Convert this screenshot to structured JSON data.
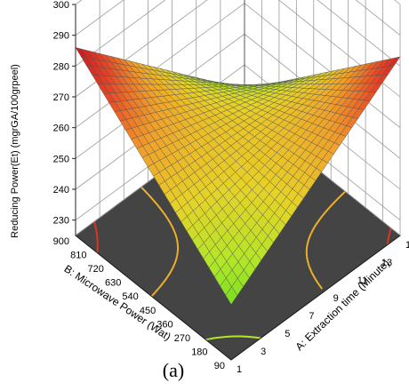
{
  "chart_data": {
    "type": "surface3d",
    "panel_label": "(a)",
    "zlabel": "Reducing Power(Et) (mgrGA/100grpeel)",
    "xlabel": "A: Extraction time (Minute)",
    "ylabel": "B: Microwave Power (Wat)",
    "x_ticks": [
      "1",
      "3",
      "5",
      "7",
      "9",
      "11",
      "13",
      "15"
    ],
    "y_ticks": [
      "90",
      "180",
      "270",
      "360",
      "450",
      "540",
      "630",
      "720",
      "810",
      "900"
    ],
    "z_ticks": [
      "230",
      "240",
      "250",
      "260",
      "270",
      "280",
      "290",
      "300"
    ],
    "xlim": [
      1,
      15
    ],
    "ylim": [
      90,
      900
    ],
    "zlim": [
      225,
      300
    ],
    "surface_corners": [
      {
        "x": 1,
        "y": 90,
        "z": 243
      },
      {
        "x": 15,
        "y": 90,
        "z": 283
      },
      {
        "x": 1,
        "y": 900,
        "z": 286
      },
      {
        "x": 15,
        "y": 900,
        "z": 232
      }
    ],
    "colormap": [
      "#22cc22",
      "#66dd22",
      "#b4e628",
      "#e6d228",
      "#f0a02a",
      "#e64626",
      "#c8141e"
    ],
    "contour_levels": [
      235,
      250,
      265,
      280
    ]
  }
}
